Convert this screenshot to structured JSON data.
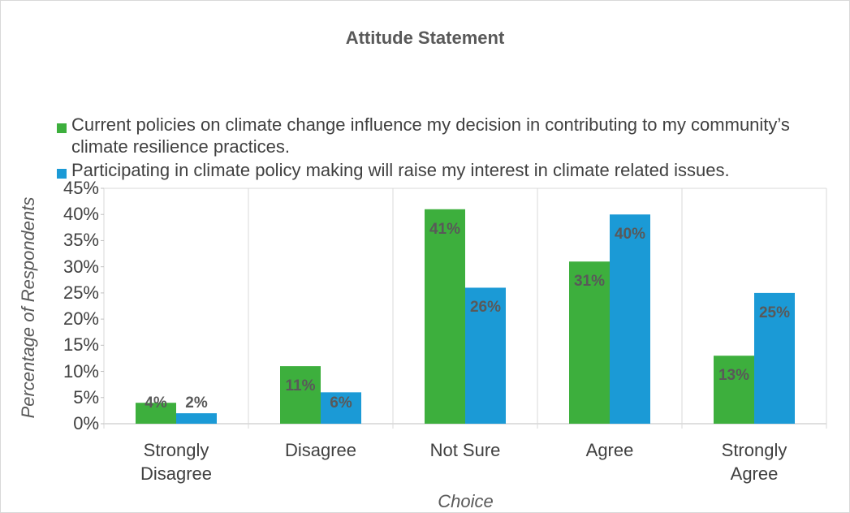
{
  "chart_data": {
    "type": "bar",
    "title": "Attitude Statement",
    "x_label": "Choice",
    "y_label": "Percentage of Respondents",
    "categories": [
      "Strongly Disagree",
      "Disagree",
      "Not Sure",
      "Agree",
      "Strongly Agree"
    ],
    "series": [
      {
        "name": "Current policies on climate change influence my decision in contributing to my community’s climate resilience practices.",
        "color": "#3daf3d",
        "values": [
          4,
          11,
          41,
          31,
          13
        ],
        "value_labels": [
          "4%",
          "11%",
          "41%",
          "31%",
          "13%"
        ]
      },
      {
        "name": "Participating in climate policy making will raise my interest in climate related issues.",
        "color": "#1b9ad6",
        "values": [
          2,
          6,
          26,
          40,
          25
        ],
        "value_labels": [
          "2%",
          "6%",
          "26%",
          "40%",
          "25%"
        ]
      }
    ],
    "ylim": [
      0,
      45
    ],
    "yticks": [
      {
        "value": 0,
        "label": "0%"
      },
      {
        "value": 5,
        "label": "5%"
      },
      {
        "value": 10,
        "label": "10%"
      },
      {
        "value": 15,
        "label": "15%"
      },
      {
        "value": 20,
        "label": "20%"
      },
      {
        "value": 25,
        "label": "25%"
      },
      {
        "value": 30,
        "label": "30%"
      },
      {
        "value": 35,
        "label": "35%"
      },
      {
        "value": 40,
        "label": "40%"
      },
      {
        "value": 45,
        "label": "45%"
      }
    ],
    "legend": "top"
  }
}
